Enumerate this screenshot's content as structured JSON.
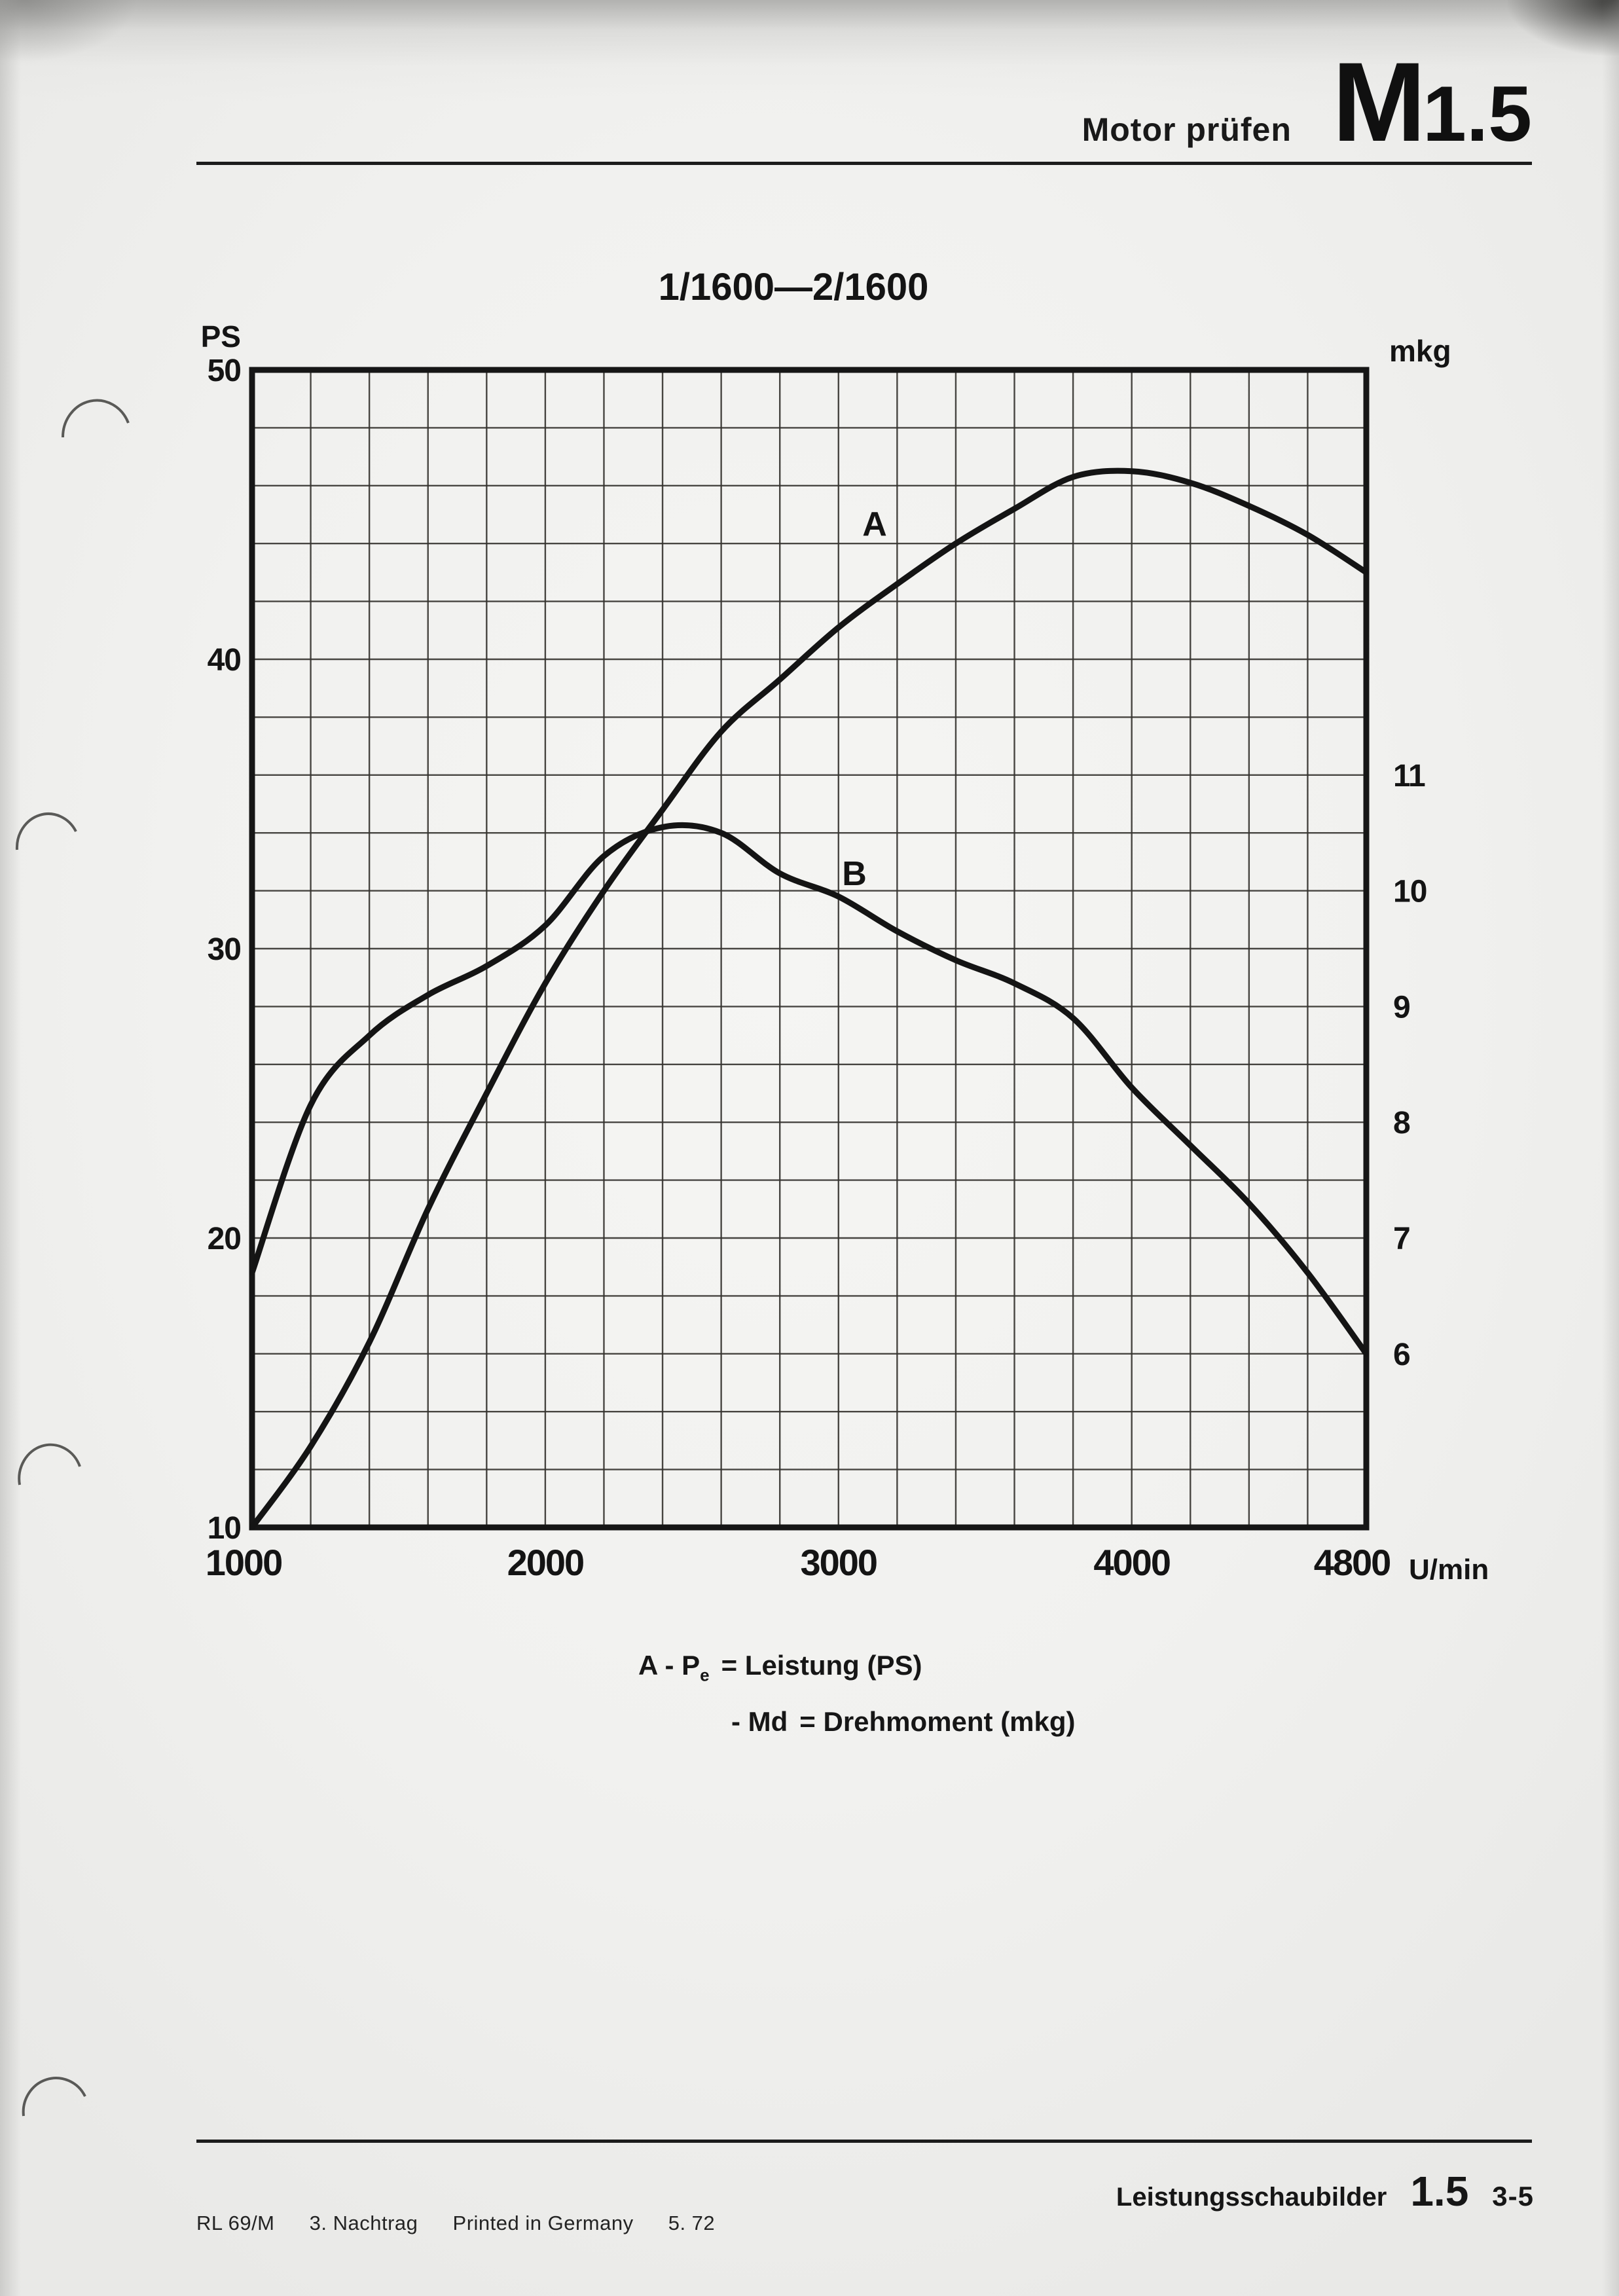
{
  "header": {
    "section": "Motor prüfen",
    "code_letter": "M",
    "code_number": "1.5"
  },
  "chart_data": {
    "type": "line",
    "title": "1/1600—2/1600",
    "x_axis": {
      "label_unit": "U/min",
      "min": 1000,
      "max": 4800,
      "grid_step": 200,
      "tick_values": [
        1000,
        2000,
        3000,
        4000,
        4800
      ],
      "tick_labels": [
        "1000",
        "2000",
        "3000",
        "4000",
        "4800"
      ]
    },
    "y_left_axis": {
      "label": "PS",
      "min": 10,
      "max": 50,
      "grid_step": 2,
      "ticks": [
        50,
        40,
        30,
        20,
        10
      ]
    },
    "y_right_axis": {
      "label": "mkg",
      "ticks": [
        11,
        10,
        9,
        8,
        7,
        6
      ],
      "scale_note": "1 mkg spans 4 PS on the shared grid; 7 mkg aligns with 20 PS"
    },
    "rpm": [
      1000,
      1200,
      1400,
      1600,
      1800,
      2000,
      2200,
      2400,
      2600,
      2800,
      3000,
      3200,
      3400,
      3600,
      3800,
      4000,
      4200,
      4400,
      4600,
      4800
    ],
    "series": [
      {
        "label": "A",
        "symbol": "Pe",
        "name": "Leistung",
        "unit": "PS",
        "values": [
          10,
          12.8,
          16.4,
          21,
          25,
          28.8,
          32,
          34.8,
          37.5,
          39.3,
          41.1,
          42.6,
          44,
          45.2,
          46.3,
          46.5,
          46.1,
          45.3,
          44.3,
          43
        ]
      },
      {
        "label": "B",
        "symbol": "Md",
        "name": "Drehmoment",
        "unit": "mkg",
        "values": [
          6.7,
          8.15,
          8.75,
          9.1,
          9.35,
          9.7,
          10.3,
          10.55,
          10.5,
          10.15,
          9.95,
          9.65,
          9.4,
          9.2,
          8.9,
          8.3,
          7.8,
          7.3,
          6.7,
          6.0
        ]
      }
    ],
    "grid": "on",
    "legend_position": "below-chart"
  },
  "legend": {
    "line1": {
      "pre": "A - P",
      "sub": "e",
      "eq": "= Leistung (PS)"
    },
    "line2": {
      "pre": "- Md",
      "eq": "= Drehmoment (mkg)"
    }
  },
  "footer": {
    "label": "Leistungsschaubilder",
    "code": "1.5",
    "page_ref": "3-5",
    "imprint": [
      "RL 69/M",
      "3. Nachtrag",
      "Printed in Germany",
      "5. 72"
    ]
  }
}
